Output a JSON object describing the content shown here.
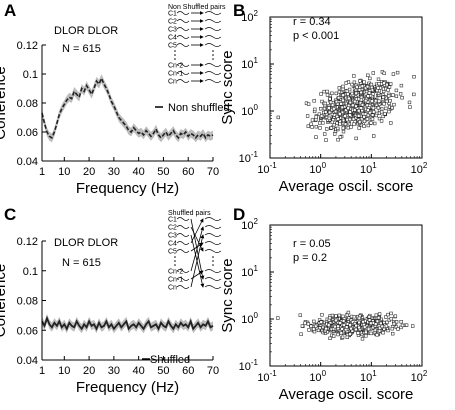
{
  "figure": {
    "panels": {
      "A": {
        "letter": "A",
        "title": "DLOR DLOR",
        "n_label": "N = 615",
        "legend": "Non shuffled",
        "inset_title": "Non Shuffled pairs",
        "inset_rows": [
          "C1",
          "C2",
          "C3",
          "C4",
          "C5",
          "Cn-2",
          "Cn-1",
          "Cn"
        ]
      },
      "B": {
        "letter": "B",
        "r_label": "r = 0.34",
        "p_label": "p < 0.001"
      },
      "C": {
        "letter": "C",
        "title": "DLOR DLOR",
        "n_label": "N = 615",
        "legend": "Shuffled",
        "inset_title": "Shuffled pairs",
        "inset_rows": [
          "C1",
          "C2",
          "C3",
          "C4",
          "C5",
          "Cn-2",
          "Cn-1",
          "Cn"
        ]
      },
      "D": {
        "letter": "D",
        "r_label": "r = 0.05",
        "p_label": "p = 0.2"
      }
    }
  },
  "chart_data": [
    {
      "id": "A",
      "type": "line",
      "xlabel": "Frequency (Hz)",
      "ylabel": "Coherence",
      "xlim": [
        1,
        70
      ],
      "ylim": [
        0.04,
        0.12
      ],
      "xticks": [
        1,
        10,
        20,
        30,
        40,
        50,
        60,
        70
      ],
      "yticks": [
        0.04,
        0.06,
        0.08,
        0.1,
        0.12
      ],
      "yticklabels": [
        "0.04",
        "0.06",
        "0.08",
        "0.1",
        "0.12"
      ],
      "series": [
        {
          "name": "Non shuffled",
          "x": [
            1,
            2,
            3,
            4,
            5,
            6,
            7,
            8,
            9,
            10,
            11,
            12,
            13,
            14,
            15,
            16,
            17,
            18,
            19,
            20,
            21,
            22,
            23,
            24,
            25,
            26,
            27,
            28,
            29,
            30,
            31,
            32,
            33,
            34,
            35,
            36,
            37,
            38,
            39,
            40,
            41,
            42,
            43,
            44,
            45,
            46,
            47,
            48,
            49,
            50,
            51,
            52,
            53,
            54,
            55,
            56,
            57,
            58,
            59,
            60,
            61,
            62,
            63,
            64,
            65,
            66,
            67,
            68,
            69,
            70
          ],
          "values": [
            0.073,
            0.066,
            0.06,
            0.057,
            0.056,
            0.06,
            0.066,
            0.072,
            0.076,
            0.079,
            0.082,
            0.084,
            0.083,
            0.088,
            0.086,
            0.084,
            0.09,
            0.088,
            0.092,
            0.089,
            0.086,
            0.09,
            0.095,
            0.093,
            0.097,
            0.093,
            0.09,
            0.086,
            0.081,
            0.078,
            0.074,
            0.07,
            0.068,
            0.066,
            0.064,
            0.061,
            0.06,
            0.063,
            0.061,
            0.059,
            0.06,
            0.058,
            0.061,
            0.059,
            0.057,
            0.059,
            0.062,
            0.058,
            0.056,
            0.058,
            0.06,
            0.057,
            0.059,
            0.061,
            0.058,
            0.056,
            0.059,
            0.058,
            0.06,
            0.057,
            0.059,
            0.058,
            0.056,
            0.058,
            0.057,
            0.059,
            0.056,
            0.058,
            0.057,
            0.058
          ],
          "error": 0.003,
          "dashed": true
        }
      ]
    },
    {
      "id": "B",
      "type": "scatter",
      "xlabel": "Average oscil. score",
      "ylabel": "Sync score",
      "xscale": "log",
      "yscale": "log",
      "xlim": [
        0.1,
        100
      ],
      "ylim": [
        0.1,
        100
      ],
      "ticks": [
        0.1,
        1,
        10,
        100
      ],
      "ticklabel_base": "10",
      "ticklabel_exps": [
        "-1",
        "0",
        "1",
        "2"
      ],
      "cloud": {
        "x_center": 5,
        "x_log_sd": 0.38,
        "y_center": 1.3,
        "y_log_sd": 0.27,
        "correlation": 0.34,
        "n": 615
      }
    },
    {
      "id": "C",
      "type": "line",
      "xlabel": "Frequency (Hz)",
      "ylabel": "Coherence",
      "xlim": [
        1,
        70
      ],
      "ylim": [
        0.04,
        0.12
      ],
      "xticks": [
        1,
        10,
        20,
        30,
        40,
        50,
        60,
        70
      ],
      "yticks": [
        0.04,
        0.06,
        0.08,
        0.1,
        0.12
      ],
      "yticklabels": [
        "0.04",
        "0.06",
        "0.08",
        "0.1",
        "0.12"
      ],
      "series": [
        {
          "name": "Shuffled",
          "x": [
            1,
            2,
            3,
            4,
            5,
            6,
            7,
            8,
            9,
            10,
            11,
            12,
            13,
            14,
            15,
            16,
            17,
            18,
            19,
            20,
            21,
            22,
            23,
            24,
            25,
            26,
            27,
            28,
            29,
            30,
            31,
            32,
            33,
            34,
            35,
            36,
            37,
            38,
            39,
            40,
            41,
            42,
            43,
            44,
            45,
            46,
            47,
            48,
            49,
            50,
            51,
            52,
            53,
            54,
            55,
            56,
            57,
            58,
            59,
            60,
            61,
            62,
            63,
            64,
            65,
            66,
            67,
            68,
            69,
            70
          ],
          "values": [
            0.066,
            0.063,
            0.068,
            0.064,
            0.062,
            0.065,
            0.063,
            0.066,
            0.062,
            0.064,
            0.061,
            0.065,
            0.063,
            0.062,
            0.066,
            0.063,
            0.061,
            0.064,
            0.062,
            0.066,
            0.063,
            0.064,
            0.061,
            0.065,
            0.062,
            0.063,
            0.066,
            0.062,
            0.064,
            0.061,
            0.063,
            0.065,
            0.062,
            0.064,
            0.066,
            0.061,
            0.063,
            0.064,
            0.062,
            0.065,
            0.063,
            0.061,
            0.064,
            0.066,
            0.062,
            0.063,
            0.064,
            0.061,
            0.065,
            0.063,
            0.062,
            0.066,
            0.063,
            0.061,
            0.064,
            0.062,
            0.065,
            0.063,
            0.064,
            0.062,
            0.066,
            0.061,
            0.063,
            0.065,
            0.062,
            0.064,
            0.063,
            0.066,
            0.062,
            0.063
          ],
          "error": 0.003,
          "dashed": false
        }
      ]
    },
    {
      "id": "D",
      "type": "scatter",
      "xlabel": "Average oscil. score",
      "ylabel": "Sync score",
      "xscale": "log",
      "yscale": "log",
      "xlim": [
        0.1,
        100
      ],
      "ylim": [
        0.1,
        100
      ],
      "ticks": [
        0.1,
        1,
        10,
        100
      ],
      "ticklabel_base": "10",
      "ticklabel_exps": [
        "-1",
        "0",
        "1",
        "2"
      ],
      "cloud": {
        "x_center": 4,
        "x_log_sd": 0.38,
        "y_center": 0.72,
        "y_log_sd": 0.1,
        "correlation": 0.05,
        "n": 615
      }
    }
  ]
}
